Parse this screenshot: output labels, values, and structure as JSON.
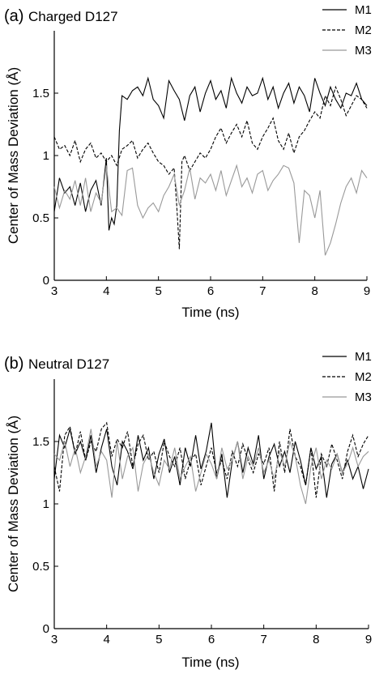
{
  "chart_data": [
    {
      "type": "line",
      "panel_label": "(a)",
      "title": "Charged D127",
      "xlabel": "Time (ns)",
      "ylabel": "Center of Mass Deviation (Å)",
      "xlim": [
        3,
        9
      ],
      "ylim": [
        0,
        2
      ],
      "xticks": [
        "3",
        "4",
        "5",
        "6",
        "7",
        "8",
        "9"
      ],
      "yticks": [
        "0",
        "0.5",
        "1",
        "1.5"
      ],
      "grid": false,
      "legend_position": "top-right",
      "series": [
        {
          "name": "M1",
          "color": "#000000",
          "dash": "solid",
          "x": [
            3.0,
            3.1,
            3.2,
            3.3,
            3.4,
            3.5,
            3.6,
            3.7,
            3.8,
            3.9,
            4.0,
            4.05,
            4.1,
            4.15,
            4.2,
            4.25,
            4.3,
            4.4,
            4.5,
            4.6,
            4.7,
            4.8,
            4.9,
            5.0,
            5.1,
            5.2,
            5.3,
            5.4,
            5.5,
            5.6,
            5.7,
            5.8,
            5.9,
            6.0,
            6.1,
            6.2,
            6.3,
            6.4,
            6.5,
            6.6,
            6.7,
            6.8,
            6.9,
            7.0,
            7.1,
            7.2,
            7.3,
            7.4,
            7.5,
            7.6,
            7.7,
            7.8,
            7.9,
            8.0,
            8.1,
            8.2,
            8.3,
            8.4,
            8.5,
            8.6,
            8.7,
            8.8,
            8.9,
            9.0
          ],
          "y": [
            0.55,
            0.82,
            0.7,
            0.75,
            0.6,
            0.78,
            0.55,
            0.72,
            0.8,
            0.6,
            0.98,
            0.4,
            0.5,
            0.45,
            0.6,
            1.2,
            1.48,
            1.45,
            1.52,
            1.55,
            1.48,
            1.62,
            1.45,
            1.4,
            1.3,
            1.6,
            1.52,
            1.45,
            1.28,
            1.48,
            1.55,
            1.35,
            1.5,
            1.6,
            1.45,
            1.52,
            1.38,
            1.62,
            1.5,
            1.42,
            1.55,
            1.48,
            1.5,
            1.62,
            1.45,
            1.55,
            1.38,
            1.5,
            1.58,
            1.42,
            1.55,
            1.48,
            1.35,
            1.62,
            1.5,
            1.4,
            1.55,
            1.45,
            1.38,
            1.5,
            1.48,
            1.58,
            1.45,
            1.4
          ]
        },
        {
          "name": "M2",
          "color": "#000000",
          "dash": "dashed",
          "x": [
            3.0,
            3.1,
            3.2,
            3.3,
            3.4,
            3.5,
            3.6,
            3.7,
            3.8,
            3.9,
            4.0,
            4.1,
            4.2,
            4.3,
            4.4,
            4.5,
            4.6,
            4.7,
            4.8,
            4.9,
            5.0,
            5.1,
            5.2,
            5.3,
            5.35,
            5.4,
            5.45,
            5.5,
            5.6,
            5.7,
            5.8,
            5.9,
            6.0,
            6.1,
            6.2,
            6.3,
            6.4,
            6.5,
            6.6,
            6.7,
            6.8,
            6.9,
            7.0,
            7.1,
            7.2,
            7.3,
            7.4,
            7.5,
            7.6,
            7.7,
            7.8,
            7.9,
            8.0,
            8.1,
            8.2,
            8.3,
            8.4,
            8.5,
            8.6,
            8.7,
            8.8,
            8.9,
            9.0
          ],
          "y": [
            1.15,
            1.05,
            1.08,
            1.0,
            1.12,
            0.95,
            1.05,
            1.1,
            0.98,
            1.02,
            0.95,
            1.0,
            0.92,
            1.05,
            1.08,
            1.12,
            0.98,
            1.05,
            1.1,
            1.02,
            0.95,
            0.92,
            0.85,
            0.9,
            0.6,
            0.25,
            0.95,
            1.0,
            0.88,
            0.95,
            1.02,
            0.98,
            1.05,
            1.15,
            1.22,
            1.1,
            1.18,
            1.25,
            1.15,
            1.28,
            1.1,
            1.05,
            1.15,
            1.22,
            1.3,
            1.12,
            1.05,
            1.18,
            1.02,
            1.15,
            1.2,
            1.28,
            1.35,
            1.3,
            1.48,
            1.4,
            1.55,
            1.45,
            1.32,
            1.4,
            1.48,
            1.45,
            1.38
          ]
        },
        {
          "name": "M3",
          "color": "#999999",
          "dash": "solid",
          "x": [
            3.0,
            3.1,
            3.2,
            3.3,
            3.4,
            3.5,
            3.6,
            3.7,
            3.8,
            3.9,
            4.0,
            4.1,
            4.2,
            4.3,
            4.4,
            4.5,
            4.6,
            4.7,
            4.8,
            4.9,
            5.0,
            5.1,
            5.2,
            5.3,
            5.4,
            5.5,
            5.6,
            5.7,
            5.8,
            5.9,
            6.0,
            6.1,
            6.2,
            6.3,
            6.4,
            6.5,
            6.6,
            6.7,
            6.8,
            6.9,
            7.0,
            7.1,
            7.2,
            7.3,
            7.4,
            7.5,
            7.6,
            7.7,
            7.8,
            7.9,
            8.0,
            8.1,
            8.2,
            8.3,
            8.4,
            8.5,
            8.6,
            8.7,
            8.8,
            8.9,
            9.0
          ],
          "y": [
            0.75,
            0.58,
            0.72,
            0.65,
            0.8,
            0.6,
            0.82,
            0.55,
            0.7,
            0.62,
            0.92,
            0.55,
            0.58,
            0.52,
            0.88,
            0.9,
            0.6,
            0.5,
            0.58,
            0.62,
            0.55,
            0.68,
            0.75,
            0.85,
            0.6,
            0.72,
            0.9,
            0.65,
            0.82,
            0.78,
            0.85,
            0.72,
            0.88,
            0.68,
            0.8,
            0.92,
            0.75,
            0.82,
            0.7,
            0.85,
            0.88,
            0.72,
            0.8,
            0.85,
            0.92,
            0.9,
            0.78,
            0.3,
            0.72,
            0.68,
            0.5,
            0.72,
            0.2,
            0.3,
            0.45,
            0.62,
            0.75,
            0.82,
            0.7,
            0.88,
            0.82
          ]
        }
      ]
    },
    {
      "type": "line",
      "panel_label": "(b)",
      "title": "Neutral D127",
      "xlabel": "Time (ns)",
      "ylabel": "Center of Mass Deviation (Å)",
      "xlim": [
        3,
        9
      ],
      "ylim": [
        0,
        2
      ],
      "xticks": [
        "3",
        "4",
        "5",
        "6",
        "7",
        "8",
        "9"
      ],
      "yticks": [
        "0",
        "0.5",
        "1",
        "1.5"
      ],
      "grid": false,
      "legend_position": "top-right",
      "series": [
        {
          "name": "M1",
          "color": "#000000",
          "dash": "solid",
          "x": [
            3.0,
            3.1,
            3.2,
            3.3,
            3.4,
            3.5,
            3.6,
            3.7,
            3.8,
            3.9,
            4.0,
            4.1,
            4.2,
            4.3,
            4.4,
            4.5,
            4.6,
            4.7,
            4.8,
            4.9,
            5.0,
            5.1,
            5.2,
            5.3,
            5.4,
            5.5,
            5.6,
            5.7,
            5.8,
            5.9,
            6.0,
            6.1,
            6.2,
            6.3,
            6.4,
            6.5,
            6.6,
            6.7,
            6.8,
            6.9,
            7.0,
            7.1,
            7.2,
            7.3,
            7.4,
            7.5,
            7.6,
            7.7,
            7.8,
            7.9,
            8.0,
            8.1,
            8.2,
            8.3,
            8.4,
            8.5,
            8.6,
            8.7,
            8.8,
            8.9,
            9.0
          ],
          "y": [
            1.2,
            1.55,
            1.45,
            1.6,
            1.4,
            1.5,
            1.35,
            1.55,
            1.25,
            1.45,
            1.6,
            1.3,
            1.15,
            1.5,
            1.42,
            1.28,
            1.55,
            1.35,
            1.45,
            1.2,
            1.4,
            1.52,
            1.25,
            1.38,
            1.15,
            1.45,
            1.3,
            1.55,
            1.28,
            1.42,
            1.65,
            1.2,
            1.4,
            1.05,
            1.35,
            1.5,
            1.25,
            1.45,
            1.32,
            1.55,
            1.2,
            1.38,
            1.48,
            1.3,
            1.42,
            1.25,
            1.5,
            1.35,
            1.15,
            1.45,
            1.28,
            1.38,
            1.05,
            1.32,
            1.4,
            1.25,
            1.35,
            1.2,
            1.3,
            1.12,
            1.28
          ]
        },
        {
          "name": "M2",
          "color": "#000000",
          "dash": "dashed",
          "x": [
            3.0,
            3.1,
            3.2,
            3.3,
            3.4,
            3.5,
            3.6,
            3.7,
            3.8,
            3.9,
            4.0,
            4.1,
            4.2,
            4.3,
            4.4,
            4.5,
            4.6,
            4.7,
            4.8,
            4.9,
            5.0,
            5.1,
            5.2,
            5.3,
            5.4,
            5.5,
            5.6,
            5.7,
            5.8,
            5.9,
            6.0,
            6.1,
            6.2,
            6.3,
            6.4,
            6.5,
            6.6,
            6.7,
            6.8,
            6.9,
            7.0,
            7.1,
            7.2,
            7.3,
            7.4,
            7.5,
            7.6,
            7.7,
            7.8,
            7.9,
            8.0,
            8.1,
            8.2,
            8.3,
            8.4,
            8.5,
            8.6,
            8.7,
            8.8,
            8.9,
            9.0
          ],
          "y": [
            1.3,
            1.1,
            1.55,
            1.62,
            1.4,
            1.58,
            1.35,
            1.5,
            1.42,
            1.6,
            1.65,
            1.38,
            1.52,
            1.45,
            1.58,
            1.3,
            1.48,
            1.55,
            1.35,
            1.42,
            1.25,
            1.5,
            1.38,
            1.3,
            1.45,
            1.2,
            1.35,
            1.4,
            1.15,
            1.3,
            1.45,
            1.25,
            1.35,
            1.2,
            1.42,
            1.3,
            1.48,
            1.35,
            1.25,
            1.4,
            1.32,
            1.45,
            1.1,
            1.5,
            1.25,
            1.6,
            1.38,
            1.3,
            1.15,
            1.45,
            1.05,
            1.4,
            1.3,
            1.48,
            1.35,
            1.2,
            1.42,
            1.55,
            1.38,
            1.48,
            1.55
          ]
        },
        {
          "name": "M3",
          "color": "#999999",
          "dash": "solid",
          "x": [
            3.0,
            3.1,
            3.2,
            3.3,
            3.4,
            3.5,
            3.6,
            3.7,
            3.8,
            3.9,
            4.0,
            4.1,
            4.2,
            4.3,
            4.4,
            4.5,
            4.6,
            4.7,
            4.8,
            4.9,
            5.0,
            5.1,
            5.2,
            5.3,
            5.4,
            5.5,
            5.6,
            5.7,
            5.8,
            5.9,
            6.0,
            6.1,
            6.2,
            6.3,
            6.4,
            6.5,
            6.6,
            6.7,
            6.8,
            6.9,
            7.0,
            7.1,
            7.2,
            7.3,
            7.4,
            7.5,
            7.6,
            7.7,
            7.8,
            7.9,
            8.0,
            8.1,
            8.2,
            8.3,
            8.4,
            8.5,
            8.6,
            8.7,
            8.8,
            8.9,
            9.0
          ],
          "y": [
            1.4,
            1.35,
            1.5,
            1.3,
            1.45,
            1.25,
            1.38,
            1.6,
            1.3,
            1.42,
            1.35,
            1.05,
            1.5,
            1.2,
            1.38,
            1.45,
            1.1,
            1.32,
            1.4,
            1.25,
            1.15,
            1.35,
            1.28,
            1.45,
            1.2,
            1.3,
            1.38,
            1.1,
            1.25,
            1.4,
            1.32,
            1.2,
            1.45,
            1.28,
            1.35,
            1.5,
            1.2,
            1.38,
            1.3,
            1.45,
            1.25,
            1.35,
            1.2,
            1.42,
            1.3,
            1.5,
            1.38,
            1.15,
            1.0,
            1.3,
            1.45,
            1.2,
            1.35,
            1.28,
            1.4,
            1.25,
            1.32,
            1.45,
            1.3,
            1.38,
            1.42
          ]
        }
      ]
    }
  ]
}
